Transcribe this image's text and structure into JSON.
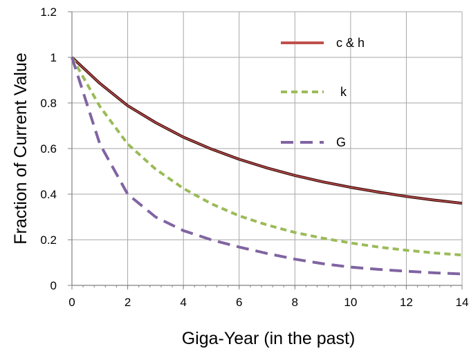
{
  "chart_data": {
    "type": "line",
    "title": "",
    "xlabel": "Giga-Year (in the past)",
    "ylabel": "Fraction of Current Value",
    "xlim": [
      0,
      14
    ],
    "ylim": [
      0,
      1.2
    ],
    "x_ticks": [
      "0",
      "2",
      "4",
      "6",
      "8",
      "10",
      "12",
      "14"
    ],
    "y_ticks": [
      "0",
      "0.2",
      "0.4",
      "0.6",
      "0.8",
      "1",
      "1.2"
    ],
    "grid": true,
    "legend_position": "top-right",
    "x": [
      0,
      1,
      2,
      3,
      4,
      5,
      6,
      7,
      8,
      9,
      10,
      11,
      12,
      13,
      14
    ],
    "series": [
      {
        "name": "c & h",
        "color": "#c0504d",
        "style": "solid",
        "values": [
          1.0,
          0.886,
          0.788,
          0.714,
          0.65,
          0.598,
          0.553,
          0.515,
          0.482,
          0.454,
          0.43,
          0.409,
          0.39,
          0.374,
          0.36
        ]
      },
      {
        "name": "k",
        "color": "#9bbb59",
        "style": "dashed",
        "values": [
          1.0,
          0.785,
          0.62,
          0.51,
          0.425,
          0.358,
          0.305,
          0.265,
          0.232,
          0.207,
          0.186,
          0.168,
          0.154,
          0.142,
          0.133
        ]
      },
      {
        "name": "G",
        "color": "#8064a2",
        "style": "longdash",
        "values": [
          1.0,
          0.62,
          0.4,
          0.3,
          0.24,
          0.2,
          0.168,
          0.14,
          0.115,
          0.095,
          0.08,
          0.07,
          0.062,
          0.055,
          0.05
        ]
      }
    ]
  }
}
